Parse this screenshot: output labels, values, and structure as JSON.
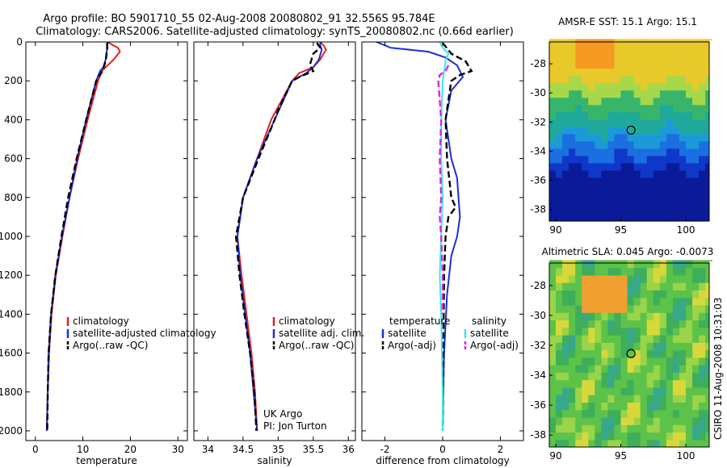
{
  "header": {
    "line1": "Argo profile: BO 5901710_55 02-Aug-2008 20080802_91 32.556S 95.784E",
    "line2": "Climatology: CARS2006. Satellite-adjusted climatology: synTS_20080802.nc (0.66d earlier)"
  },
  "side_credit": "CSIRO 11-Aug-2008 10:31:03",
  "colors": {
    "climatology": "#e02020",
    "satellite": "#1a2fd6",
    "argo": "#000000",
    "satellite_salinity": "#38e8e8",
    "argo_adj_salinity": "#e020e0"
  },
  "chart_data": [
    {
      "type": "line",
      "xlabel": "temperature",
      "xlim": [
        -2,
        32
      ],
      "ylim": [
        0,
        2050
      ],
      "xticks": [
        "0",
        "10",
        "20",
        "30"
      ],
      "yticks": [
        "0",
        "200",
        "400",
        "600",
        "800",
        "1000",
        "1200",
        "1400",
        "1600",
        "1800",
        "2000"
      ],
      "legend": [
        "climatology",
        "satellite-adjusted climatology",
        "Argo(..raw -QC)"
      ],
      "legend_position": "lower-right",
      "series": [
        {
          "name": "climatology",
          "color": "#e02020",
          "x": [
            15.1,
            17.4,
            17.8,
            16.5,
            14.8,
            14.0,
            13.2,
            11.0,
            9.0,
            7.2,
            5.7,
            4.3,
            3.4,
            2.9,
            2.6,
            2.4
          ],
          "y": [
            0,
            30,
            50,
            90,
            130,
            150,
            200,
            400,
            600,
            800,
            1000,
            1200,
            1400,
            1600,
            1800,
            2000
          ]
        },
        {
          "name": "satellite-adjusted climatology",
          "color": "#1a2fd6",
          "x": [
            15.1,
            15.2,
            15.0,
            14.8,
            14.3,
            13.6,
            12.8,
            10.7,
            8.8,
            7.2,
            5.6,
            4.2,
            3.3,
            2.8,
            2.6,
            2.4
          ],
          "y": [
            0,
            30,
            50,
            90,
            130,
            150,
            200,
            400,
            600,
            800,
            1000,
            1200,
            1400,
            1600,
            1800,
            2000
          ]
        },
        {
          "name": "Argo(..raw -QC)",
          "color": "#000000",
          "x": [
            15.1,
            15.1,
            15.0,
            14.8,
            14.1,
            12.8,
            10.7,
            8.7,
            6.9,
            5.5,
            4.2,
            3.3,
            2.8,
            2.6,
            2.5
          ],
          "y": [
            5,
            30,
            60,
            100,
            150,
            200,
            400,
            600,
            800,
            1000,
            1200,
            1400,
            1600,
            1800,
            2000
          ]
        }
      ]
    },
    {
      "type": "line",
      "xlabel": "salinity",
      "xlim": [
        33.8,
        36.1
      ],
      "ylim": [
        0,
        2050
      ],
      "xticks": [
        "34",
        "34.5",
        "35",
        "35.5",
        "36"
      ],
      "legend": [
        "climatology",
        "satellite adj. clim.",
        "Argo(..raw -QC)"
      ],
      "legend_position": "lower-right",
      "annotations": [
        "UK Argo",
        "PI: Jon Turton"
      ],
      "series": [
        {
          "name": "climatology",
          "color": "#e02020",
          "x": [
            35.6,
            35.65,
            35.68,
            35.6,
            35.5,
            35.3,
            35.2,
            34.9,
            34.7,
            34.5,
            34.42,
            34.48,
            34.55,
            34.62,
            34.67,
            34.7
          ],
          "y": [
            0,
            20,
            40,
            90,
            130,
            160,
            200,
            400,
            600,
            800,
            1000,
            1200,
            1400,
            1600,
            1800,
            2000
          ]
        },
        {
          "name": "satellite adj. clim.",
          "color": "#1a2fd6",
          "x": [
            35.6,
            35.6,
            35.62,
            35.58,
            35.5,
            35.4,
            35.2,
            34.95,
            34.7,
            34.5,
            34.42,
            34.46,
            34.53,
            34.6,
            34.65,
            34.7
          ],
          "y": [
            0,
            20,
            40,
            90,
            130,
            160,
            200,
            400,
            600,
            800,
            1000,
            1200,
            1400,
            1600,
            1800,
            2000
          ]
        },
        {
          "name": "Argo(..raw -QC)",
          "color": "#000000",
          "x": [
            35.55,
            35.6,
            35.5,
            35.45,
            35.5,
            35.3,
            35.2,
            35.0,
            34.95,
            34.72,
            34.5,
            34.4,
            34.45,
            34.52,
            34.6,
            34.66,
            34.69
          ],
          "y": [
            5,
            30,
            60,
            120,
            150,
            180,
            200,
            350,
            400,
            600,
            800,
            1000,
            1200,
            1400,
            1600,
            1800,
            2000
          ]
        }
      ]
    },
    {
      "type": "line",
      "xlabel": "difference from climatology",
      "xlim": [
        -2.8,
        2.8
      ],
      "ylim": [
        0,
        2050
      ],
      "xticks": [
        "-2",
        "0",
        "2"
      ],
      "legend_titles": [
        "temperature",
        "salinity"
      ],
      "legend": [
        "satellite",
        "Argo(-adj)",
        "satellite",
        "Argo(-adj)"
      ],
      "legend_position": "lower-center",
      "series": [
        {
          "name": "temperature satellite",
          "color": "#1a2fd6",
          "x": [
            -2.3,
            -1.8,
            -0.5,
            0.1,
            0.5,
            0.7,
            0.3,
            0.1,
            0.3,
            0.5,
            0.55,
            0.6,
            0.5,
            0.3,
            0.15,
            0.05,
            0.02,
            0.0
          ],
          "y": [
            0,
            30,
            50,
            80,
            120,
            180,
            250,
            400,
            600,
            700,
            800,
            900,
            1000,
            1100,
            1300,
            1600,
            1800,
            2000
          ]
        },
        {
          "name": "temperature Argo(-adj)",
          "color": "#000000",
          "x": [
            0.0,
            0.3,
            0.8,
            1.0,
            0.6,
            0.3,
            0.2,
            0.1,
            0.15,
            0.3,
            0.45,
            0.2,
            0.1,
            0.05,
            0.02,
            0.0
          ],
          "y": [
            5,
            60,
            100,
            150,
            170,
            200,
            300,
            400,
            600,
            800,
            850,
            900,
            1000,
            1200,
            1600,
            2000
          ]
        },
        {
          "name": "salinity satellite",
          "color": "#38e8e8",
          "x": [
            -0.1,
            0.0,
            0.2,
            0.1,
            0.0,
            -0.05,
            -0.05,
            0.0,
            -0.05,
            -0.1,
            -0.05,
            0.0,
            0.0
          ],
          "y": [
            0,
            30,
            60,
            100,
            200,
            400,
            600,
            800,
            1000,
            1200,
            1400,
            1800,
            2000
          ]
        },
        {
          "name": "salinity Argo(-adj)",
          "color": "#e020e0",
          "x": [
            0.2,
            0.1,
            -0.1,
            -0.15,
            -0.05,
            -0.1,
            -0.05,
            -0.1,
            -0.05,
            0.0,
            0.0
          ],
          "y": [
            120,
            150,
            170,
            200,
            400,
            600,
            800,
            900,
            1000,
            1200,
            1400
          ]
        }
      ]
    },
    {
      "type": "heatmap",
      "title": "AMSR-E SST: 15.1 Argo: 15.1",
      "xlim": [
        89.5,
        101.8
      ],
      "ylim": [
        -38.8,
        -26.5
      ],
      "xticks": [
        "90",
        "95",
        "100"
      ],
      "yticks": [
        "-28",
        "-30",
        "-32",
        "-34",
        "-36",
        "-38"
      ],
      "marker": {
        "lon": 95.784,
        "lat": -32.556
      }
    },
    {
      "type": "heatmap",
      "title": "Altimetric SLA: 0.045 Argo: -0.0073",
      "xlim": [
        89.5,
        101.8
      ],
      "ylim": [
        -38.8,
        -26.5
      ],
      "xticks": [
        "90",
        "95",
        "100"
      ],
      "yticks": [
        "-28",
        "-30",
        "-32",
        "-34",
        "-36",
        "-38"
      ],
      "marker": {
        "lon": 95.784,
        "lat": -32.556
      }
    }
  ]
}
